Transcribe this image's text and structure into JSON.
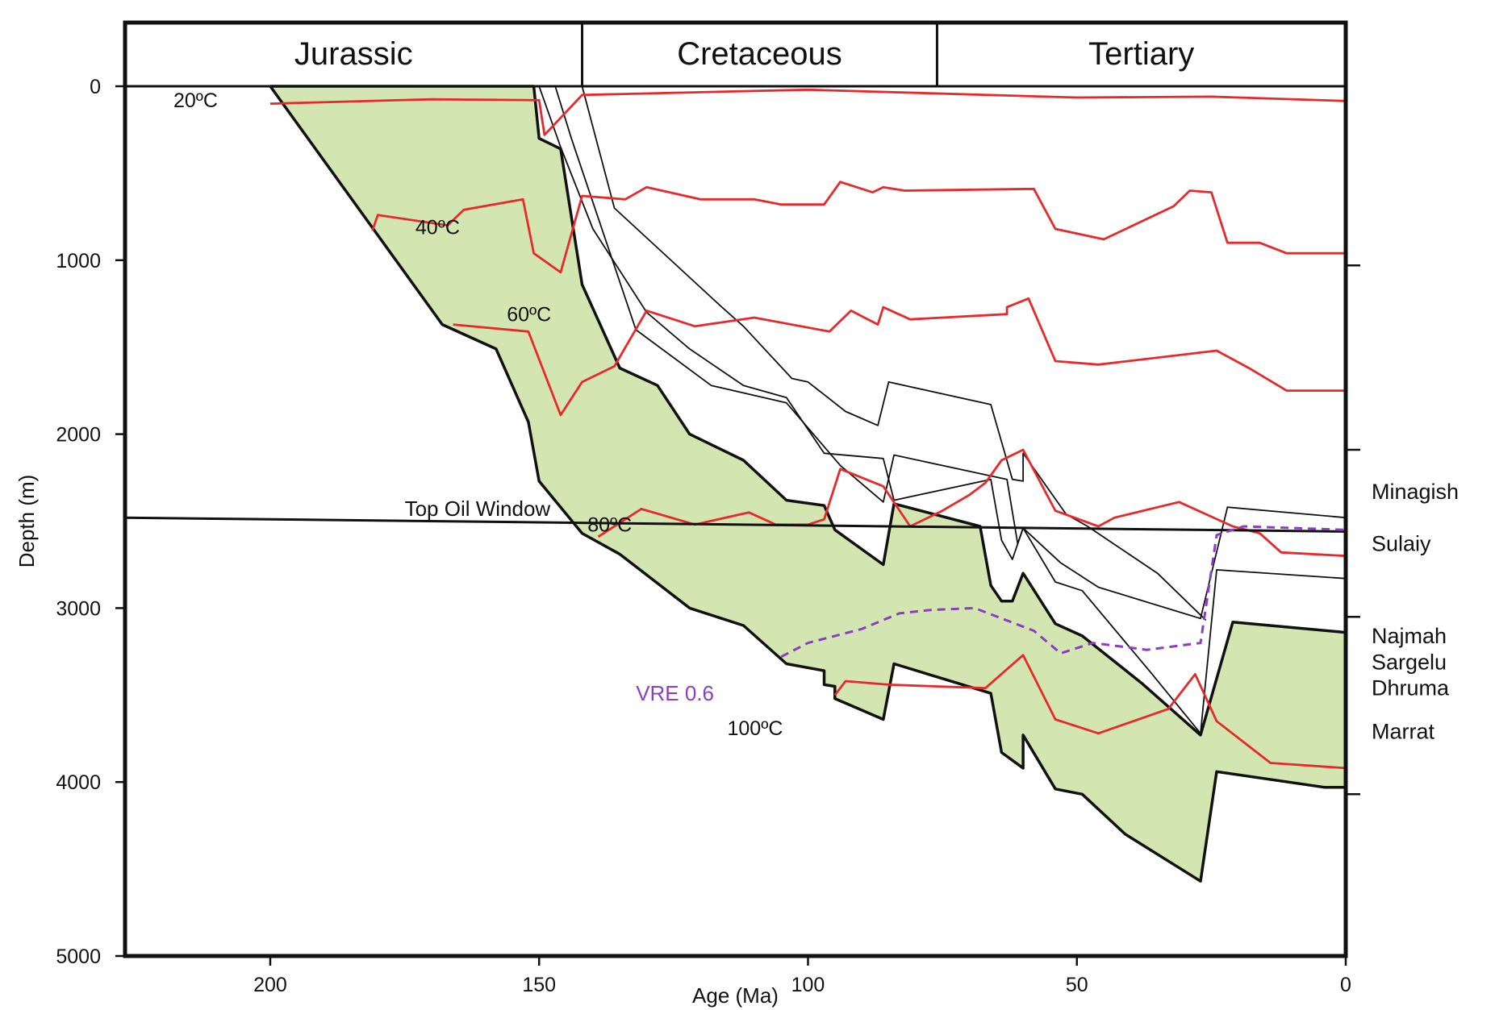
{
  "chart_data": {
    "type": "line",
    "title": "",
    "xlabel": "Age (Ma)",
    "ylabel": "Depth (m)",
    "xlim": [
      227,
      0
    ],
    "ylim": [
      0,
      5000
    ],
    "xticks": [
      200,
      150,
      100,
      50,
      0
    ],
    "yticks": [
      0,
      1000,
      2000,
      3000,
      4000,
      5000
    ],
    "periods": [
      {
        "name": "Jurassic",
        "start": 227,
        "end": 142
      },
      {
        "name": "Cretaceous",
        "start": 142,
        "end": 76
      },
      {
        "name": "Tertiary",
        "start": 76,
        "end": 0
      }
    ],
    "colors": {
      "isotherm": "#e8282b",
      "vre": "#8a3fc0",
      "fill": "#d3e6b2",
      "burial": "#111111"
    },
    "green_band_upper": [
      [
        200,
        0
      ],
      [
        151,
        0
      ],
      [
        150,
        300
      ],
      [
        146,
        360
      ],
      [
        142,
        1140
      ],
      [
        135,
        1620
      ],
      [
        128,
        1720
      ],
      [
        122,
        2000
      ],
      [
        112,
        2150
      ],
      [
        104,
        2380
      ],
      [
        97,
        2410
      ],
      [
        95,
        2550
      ],
      [
        86,
        2750
      ],
      [
        84,
        2400
      ],
      [
        68,
        2530
      ],
      [
        66,
        2870
      ],
      [
        64,
        2960
      ],
      [
        62,
        2960
      ],
      [
        60,
        2800
      ],
      [
        54,
        3090
      ],
      [
        49,
        3160
      ],
      [
        38,
        3430
      ],
      [
        27,
        3730
      ],
      [
        21,
        3080
      ],
      [
        0,
        3140
      ]
    ],
    "green_band_lower": [
      [
        200,
        0
      ],
      [
        168,
        1370
      ],
      [
        158,
        1510
      ],
      [
        152,
        1930
      ],
      [
        150,
        2270
      ],
      [
        142,
        2570
      ],
      [
        135,
        2690
      ],
      [
        122,
        3000
      ],
      [
        112,
        3100
      ],
      [
        104,
        3320
      ],
      [
        97,
        3360
      ],
      [
        97,
        3440
      ],
      [
        95,
        3450
      ],
      [
        95,
        3520
      ],
      [
        86,
        3640
      ],
      [
        84,
        3320
      ],
      [
        66,
        3490
      ],
      [
        64,
        3830
      ],
      [
        60,
        3920
      ],
      [
        60,
        3730
      ],
      [
        54,
        4040
      ],
      [
        49,
        4070
      ],
      [
        41,
        4300
      ],
      [
        27,
        4570
      ],
      [
        24,
        3940
      ],
      [
        4,
        4030
      ],
      [
        0,
        4030
      ]
    ],
    "burial_lines": [
      [
        [
          150,
          0
        ],
        [
          146,
          350
        ],
        [
          140,
          820
        ],
        [
          130,
          1300
        ],
        [
          122,
          1510
        ],
        [
          112,
          1720
        ],
        [
          104,
          1790
        ],
        [
          97,
          2110
        ],
        [
          86,
          2140
        ],
        [
          84,
          2380
        ],
        [
          66,
          2260
        ],
        [
          64,
          2610
        ],
        [
          62,
          2720
        ],
        [
          60,
          2540
        ],
        [
          54,
          2850
        ],
        [
          49,
          2900
        ],
        [
          36,
          3380
        ],
        [
          27,
          3720
        ],
        [
          24,
          2780
        ],
        [
          0,
          2830
        ]
      ],
      [
        [
          147,
          0
        ],
        [
          144,
          300
        ],
        [
          132,
          1400
        ],
        [
          118,
          1720
        ],
        [
          104,
          1820
        ],
        [
          94,
          2180
        ],
        [
          86,
          2390
        ],
        [
          84,
          2120
        ],
        [
          63,
          2260
        ],
        [
          61,
          2630
        ],
        [
          60,
          2540
        ],
        [
          53,
          2740
        ],
        [
          46,
          2880
        ],
        [
          27,
          3060
        ],
        [
          22,
          2420
        ],
        [
          0,
          2480
        ]
      ],
      [
        [
          142,
          0
        ],
        [
          136,
          700
        ],
        [
          116,
          1270
        ],
        [
          112,
          1380
        ],
        [
          103,
          1680
        ],
        [
          100,
          1700
        ],
        [
          93,
          1870
        ],
        [
          87,
          1950
        ],
        [
          85,
          1700
        ],
        [
          66,
          1830
        ],
        [
          62,
          2260
        ],
        [
          60,
          2270
        ],
        [
          60,
          2110
        ],
        [
          52,
          2460
        ],
        [
          48,
          2530
        ],
        [
          35,
          2800
        ],
        [
          26,
          3070
        ]
      ]
    ],
    "isotherms": [
      {
        "label": "20ºC",
        "label_at": [
          218,
          120
        ],
        "points": [
          [
            200,
            100
          ],
          [
            170,
            75
          ],
          [
            150,
            80
          ],
          [
            149,
            280
          ],
          [
            142,
            50
          ],
          [
            100,
            20
          ],
          [
            50,
            65
          ],
          [
            25,
            60
          ],
          [
            0,
            85
          ]
        ]
      },
      {
        "label": "40ºC",
        "label_at": [
          173,
          850
        ],
        "points": [
          [
            181,
            830
          ],
          [
            180,
            740
          ],
          [
            167,
            800
          ],
          [
            164,
            710
          ],
          [
            153,
            650
          ],
          [
            151,
            960
          ],
          [
            146,
            1070
          ],
          [
            142,
            630
          ],
          [
            134,
            650
          ],
          [
            130,
            580
          ],
          [
            120,
            650
          ],
          [
            110,
            650
          ],
          [
            105,
            680
          ],
          [
            97,
            680
          ],
          [
            94,
            550
          ],
          [
            88,
            610
          ],
          [
            86,
            580
          ],
          [
            82,
            600
          ],
          [
            58,
            590
          ],
          [
            54,
            820
          ],
          [
            45,
            880
          ],
          [
            32,
            690
          ],
          [
            29,
            600
          ],
          [
            25,
            610
          ],
          [
            22,
            900
          ],
          [
            16,
            900
          ],
          [
            11,
            960
          ],
          [
            0,
            960
          ]
        ]
      },
      {
        "label": "60ºC",
        "label_at": [
          156,
          1350
        ],
        "points": [
          [
            166,
            1370
          ],
          [
            152,
            1410
          ],
          [
            146,
            1890
          ],
          [
            142,
            1700
          ],
          [
            136,
            1610
          ],
          [
            130,
            1290
          ],
          [
            121,
            1380
          ],
          [
            110,
            1330
          ],
          [
            96,
            1410
          ],
          [
            92,
            1290
          ],
          [
            87,
            1370
          ],
          [
            86,
            1270
          ],
          [
            81,
            1340
          ],
          [
            63,
            1310
          ],
          [
            63,
            1270
          ],
          [
            59,
            1220
          ],
          [
            54,
            1580
          ],
          [
            46,
            1600
          ],
          [
            24,
            1520
          ],
          [
            18,
            1620
          ],
          [
            11,
            1750
          ],
          [
            0,
            1750
          ]
        ]
      },
      {
        "label": "80ºC",
        "label_at": [
          141,
          2560
        ],
        "points": [
          [
            139,
            2590
          ],
          [
            131,
            2430
          ],
          [
            121,
            2520
          ],
          [
            111,
            2450
          ],
          [
            106,
            2520
          ],
          [
            100,
            2520
          ],
          [
            97,
            2490
          ],
          [
            94,
            2200
          ],
          [
            86,
            2300
          ],
          [
            81,
            2530
          ],
          [
            75,
            2440
          ],
          [
            70,
            2350
          ],
          [
            67,
            2280
          ],
          [
            64,
            2150
          ],
          [
            60,
            2090
          ],
          [
            54,
            2440
          ],
          [
            46,
            2530
          ],
          [
            43,
            2480
          ],
          [
            31,
            2390
          ],
          [
            21,
            2530
          ],
          [
            16,
            2570
          ],
          [
            12,
            2680
          ],
          [
            0,
            2700
          ]
        ]
      },
      {
        "label": "100ºC",
        "label_at": [
          115,
          3730
        ],
        "points": [
          [
            95,
            3500
          ],
          [
            93,
            3420
          ],
          [
            85,
            3440
          ],
          [
            67,
            3460
          ],
          [
            60,
            3270
          ],
          [
            54,
            3640
          ],
          [
            46,
            3720
          ],
          [
            33,
            3580
          ],
          [
            28,
            3380
          ],
          [
            24,
            3650
          ],
          [
            14,
            3890
          ],
          [
            0,
            3920
          ]
        ]
      }
    ],
    "vre": {
      "label": "VRE 0.6",
      "label_at": [
        132,
        3530
      ],
      "points": [
        [
          105,
          3280
        ],
        [
          100,
          3200
        ],
        [
          90,
          3120
        ],
        [
          83,
          3030
        ],
        [
          77,
          3010
        ],
        [
          69,
          3000
        ],
        [
          58,
          3130
        ],
        [
          53,
          3260
        ],
        [
          47,
          3200
        ],
        [
          37,
          3240
        ],
        [
          27,
          3200
        ],
        [
          24,
          2580
        ],
        [
          19,
          2530
        ],
        [
          0,
          2550
        ]
      ]
    },
    "top_oil_window": {
      "label": "Top Oil Window",
      "label_at": [
        175,
        2470
      ],
      "points": [
        [
          227,
          2480
        ],
        [
          0,
          2560
        ]
      ]
    },
    "formations": [
      {
        "name": "Minagish",
        "depth": 2330
      },
      {
        "name": "Sulaiy",
        "depth": 2630
      },
      {
        "name": "Najmah",
        "depth": 3160
      },
      {
        "name": "Sargelu",
        "depth": 3310
      },
      {
        "name": "Dhruma",
        "depth": 3460
      },
      {
        "name": "Marrat",
        "depth": 3710
      }
    ],
    "right_ticks": [
      1030,
      2090,
      3050,
      4070
    ]
  }
}
